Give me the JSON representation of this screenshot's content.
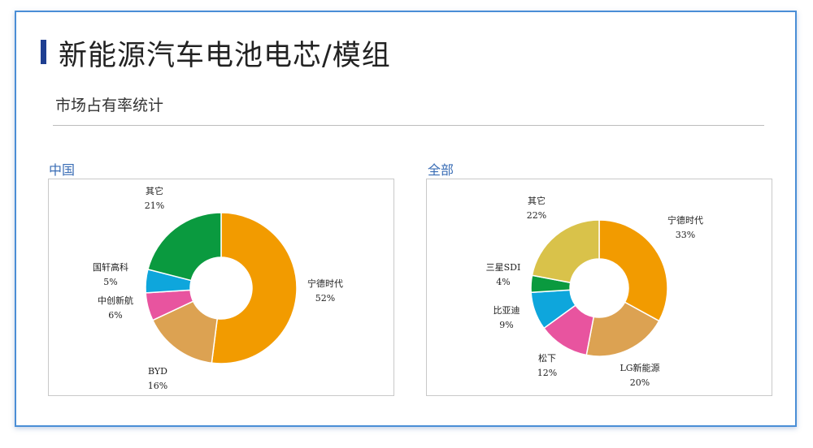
{
  "header": {
    "title": "新能源汽车电池电芯/模组",
    "subtitle": "市场占有率统计"
  },
  "chart_data": [
    {
      "type": "pie",
      "title": "中国",
      "slices": [
        {
          "label": "宁德时代",
          "value": 52,
          "value_label": "52%",
          "color": "#f29b00"
        },
        {
          "label": "BYD",
          "value": 16,
          "value_label": "16%",
          "color": "#dca252"
        },
        {
          "label": "中创新航",
          "value": 6,
          "value_label": "6%",
          "color": "#e8549f"
        },
        {
          "label": "国轩高科",
          "value": 5,
          "value_label": "5%",
          "color": "#0ea6dc"
        },
        {
          "label": "其它",
          "value": 21,
          "value_label": "21%",
          "color": "#0a9a3f"
        }
      ]
    },
    {
      "type": "pie",
      "title": "全部",
      "slices": [
        {
          "label": "宁德时代",
          "value": 33,
          "value_label": "33%",
          "color": "#f29b00"
        },
        {
          "label": "LG新能源",
          "value": 20,
          "value_label": "20%",
          "color": "#dca252"
        },
        {
          "label": "松下",
          "value": 12,
          "value_label": "12%",
          "color": "#e8549f"
        },
        {
          "label": "比亚迪",
          "value": 9,
          "value_label": "9%",
          "color": "#0ea6dc"
        },
        {
          "label": "三星SDI",
          "value": 4,
          "value_label": "4%",
          "color": "#0a9a3f"
        },
        {
          "label": "其它",
          "value": 22,
          "value_label": "22%",
          "color": "#d9c24a"
        }
      ]
    }
  ]
}
